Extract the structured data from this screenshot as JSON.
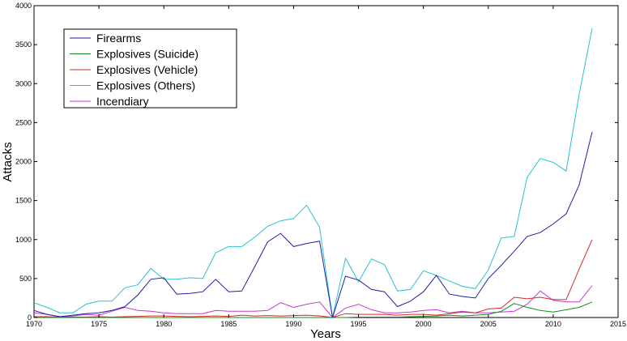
{
  "chart_data": {
    "type": "line",
    "title": "",
    "xlabel": "Years",
    "ylabel": "Attacks",
    "xlim": [
      1970,
      2015
    ],
    "ylim": [
      0,
      4000
    ],
    "xticks": [
      1970,
      1975,
      1980,
      1985,
      1990,
      1995,
      2000,
      2005,
      2010,
      2015
    ],
    "yticks": [
      0,
      500,
      1000,
      1500,
      2000,
      2500,
      3000,
      3500,
      4000
    ],
    "grid": false,
    "legend_position": "top-left",
    "x": [
      1970,
      1971,
      1972,
      1973,
      1974,
      1975,
      1976,
      1977,
      1978,
      1979,
      1980,
      1981,
      1982,
      1983,
      1984,
      1985,
      1986,
      1987,
      1988,
      1989,
      1990,
      1991,
      1992,
      1993,
      1994,
      1995,
      1996,
      1997,
      1998,
      1999,
      2000,
      2001,
      2002,
      2003,
      2004,
      2005,
      2006,
      2007,
      2008,
      2009,
      2010,
      2011,
      2012,
      2013
    ],
    "series": [
      {
        "name": "Firearms",
        "color": "#1f1fa6",
        "values": [
          90,
          40,
          10,
          30,
          50,
          60,
          90,
          140,
          290,
          490,
          510,
          300,
          310,
          330,
          490,
          330,
          340,
          650,
          970,
          1080,
          910,
          950,
          980,
          0,
          530,
          480,
          360,
          330,
          140,
          210,
          330,
          540,
          300,
          270,
          250,
          500,
          670,
          850,
          1040,
          1090,
          1200,
          1330,
          1700,
          2380
        ]
      },
      {
        "name": "Explosives (Suicide)",
        "color": "#1a8a1a",
        "values": [
          0,
          0,
          0,
          0,
          0,
          0,
          0,
          0,
          0,
          0,
          0,
          0,
          0,
          0,
          0,
          0,
          0,
          0,
          0,
          0,
          0,
          0,
          0,
          0,
          0,
          5,
          5,
          5,
          5,
          10,
          15,
          20,
          30,
          20,
          30,
          40,
          80,
          180,
          130,
          90,
          70,
          100,
          130,
          200
        ]
      },
      {
        "name": "Explosives (Vehicle)",
        "color": "#d42a2a",
        "values": [
          10,
          10,
          5,
          5,
          5,
          10,
          5,
          10,
          15,
          20,
          20,
          15,
          10,
          15,
          20,
          15,
          30,
          20,
          25,
          20,
          25,
          30,
          20,
          0,
          50,
          40,
          40,
          40,
          30,
          40,
          40,
          30,
          50,
          70,
          60,
          110,
          120,
          260,
          240,
          260,
          230,
          230,
          620,
          1000
        ]
      },
      {
        "name": "Explosives (Others)",
        "color": "#29c2d0",
        "values": [
          190,
          130,
          60,
          60,
          170,
          210,
          210,
          380,
          420,
          630,
          490,
          490,
          510,
          500,
          830,
          910,
          910,
          1030,
          1170,
          1240,
          1270,
          1440,
          1160,
          0,
          760,
          460,
          750,
          680,
          340,
          360,
          600,
          540,
          470,
          400,
          370,
          610,
          1020,
          1040,
          1800,
          2040,
          1990,
          1880,
          2860,
          3710
        ]
      },
      {
        "name": "Incendiary",
        "color": "#c23ac8",
        "values": [
          60,
          40,
          10,
          20,
          40,
          30,
          80,
          130,
          90,
          80,
          60,
          50,
          50,
          50,
          90,
          80,
          80,
          80,
          90,
          190,
          130,
          170,
          200,
          0,
          120,
          170,
          100,
          60,
          60,
          70,
          90,
          100,
          60,
          80,
          60,
          60,
          70,
          80,
          170,
          340,
          220,
          200,
          200,
          410
        ]
      }
    ]
  }
}
